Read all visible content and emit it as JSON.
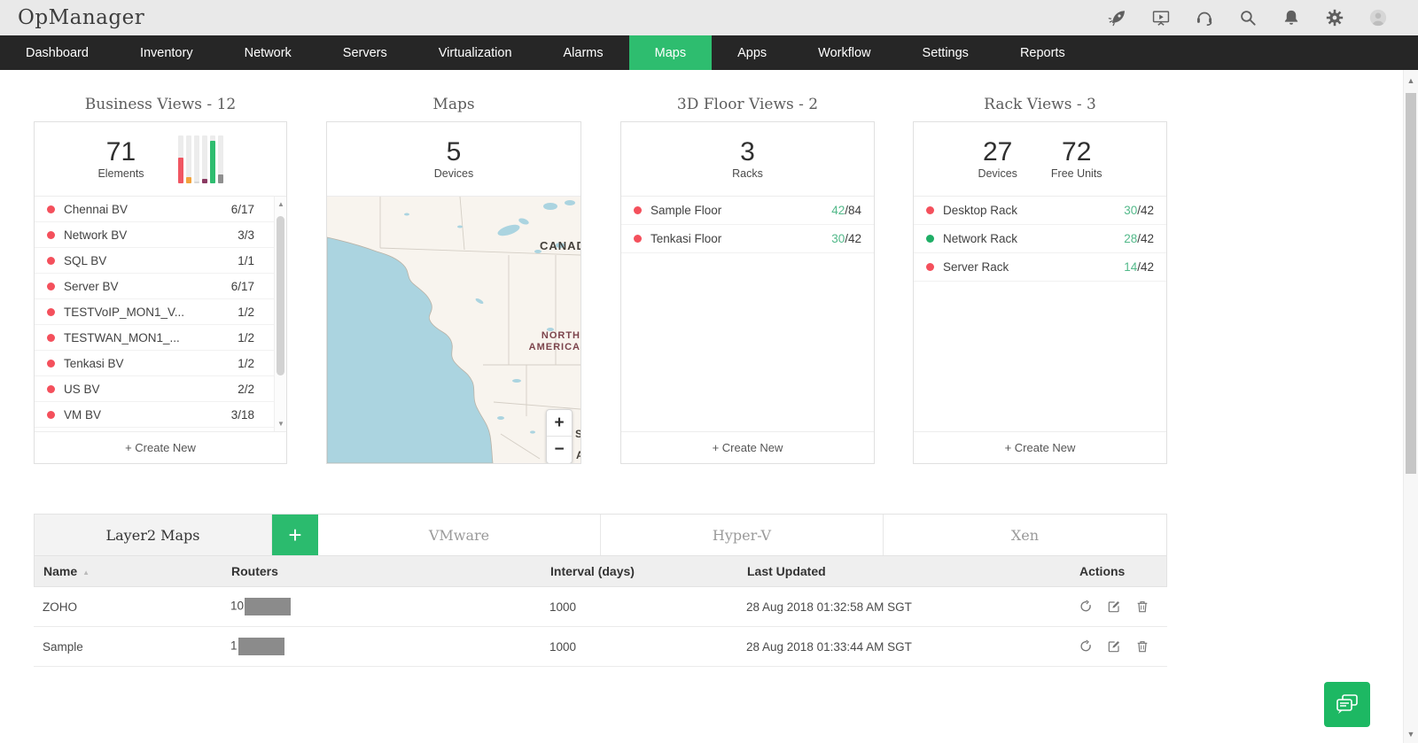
{
  "app": {
    "title": "OpManager"
  },
  "topbar": {
    "icons": [
      "rocket",
      "demo-video",
      "support-headset",
      "search",
      "notifications",
      "settings",
      "user-avatar"
    ]
  },
  "nav": {
    "items": [
      {
        "label": "Dashboard",
        "active": false
      },
      {
        "label": "Inventory",
        "active": false
      },
      {
        "label": "Network",
        "active": false
      },
      {
        "label": "Servers",
        "active": false
      },
      {
        "label": "Virtualization",
        "active": false
      },
      {
        "label": "Alarms",
        "active": false
      },
      {
        "label": "Maps",
        "active": true
      },
      {
        "label": "Apps",
        "active": false
      },
      {
        "label": "Workflow",
        "active": false
      },
      {
        "label": "Settings",
        "active": false
      },
      {
        "label": "Reports",
        "active": false
      }
    ]
  },
  "colors": {
    "accent_green": "#2ebd6f",
    "nav_bg": "#262626",
    "red_status": "#f4505c",
    "green_status": "#1fae66",
    "count_green": "#53b98a"
  },
  "cards": {
    "business_views": {
      "title": "Business Views - 12",
      "stat": {
        "value": "71",
        "label": "Elements"
      },
      "chart_bars": [
        {
          "height_pct": 52,
          "color": "#f05662"
        },
        {
          "height_pct": 12,
          "color": "#f2a33c"
        },
        {
          "height_pct": 3,
          "color": "#d8d8d8"
        },
        {
          "height_pct": 8,
          "color": "#8b3a62"
        },
        {
          "height_pct": 88,
          "color": "#2ebd6f"
        },
        {
          "height_pct": 18,
          "color": "#8f8f8f"
        }
      ],
      "items": [
        {
          "name": "Chennai BV",
          "count": "6/17",
          "status": "red"
        },
        {
          "name": "Network BV",
          "count": "3/3",
          "status": "red"
        },
        {
          "name": "SQL BV",
          "count": "1/1",
          "status": "red"
        },
        {
          "name": "Server BV",
          "count": "6/17",
          "status": "red"
        },
        {
          "name": "TESTVoIP_MON1_V...",
          "count": "1/2",
          "status": "red"
        },
        {
          "name": "TESTWAN_MON1_...",
          "count": "1/2",
          "status": "red"
        },
        {
          "name": "Tenkasi BV",
          "count": "1/2",
          "status": "red"
        },
        {
          "name": "US BV",
          "count": "2/2",
          "status": "red"
        },
        {
          "name": "VM BV",
          "count": "3/18",
          "status": "red"
        }
      ],
      "create_new": "+ Create New"
    },
    "maps": {
      "title": "Maps",
      "stat": {
        "value": "5",
        "label": "Devices"
      },
      "map": {
        "label_canada": "CANADA",
        "label_line1": "NORTH",
        "label_line2": "AMERICA",
        "clipped_1": "S",
        "clipped_2": "A",
        "zoom_in": "+",
        "zoom_out": "−"
      }
    },
    "floor_views": {
      "title": "3D Floor Views - 2",
      "stat": {
        "value": "3",
        "label": "Racks"
      },
      "items": [
        {
          "name": "Sample Floor",
          "count_used": "42",
          "count_rest": "/84",
          "status": "red"
        },
        {
          "name": "Tenkasi Floor",
          "count_used": "30",
          "count_rest": "/42",
          "status": "red"
        }
      ],
      "create_new": "+ Create New"
    },
    "rack_views": {
      "title": "Rack Views - 3",
      "stat1": {
        "value": "27",
        "label": "Devices"
      },
      "stat2": {
        "value": "72",
        "label": "Free Units"
      },
      "items": [
        {
          "name": "Desktop Rack",
          "count_used": "30",
          "count_rest": "/42",
          "status": "red"
        },
        {
          "name": "Network Rack",
          "count_used": "28",
          "count_rest": "/42",
          "status": "green"
        },
        {
          "name": "Server Rack",
          "count_used": "14",
          "count_rest": "/42",
          "status": "red"
        }
      ],
      "create_new": "+ Create New"
    }
  },
  "bottom": {
    "tabs": [
      {
        "label": "Layer2 Maps",
        "active": true
      },
      {
        "label": "VMware",
        "active": false
      },
      {
        "label": "Hyper-V",
        "active": false
      },
      {
        "label": "Xen",
        "active": false
      }
    ],
    "add_tab_label": "+",
    "table": {
      "columns": [
        "Name",
        "Routers",
        "Interval (days)",
        "Last Updated",
        "Actions"
      ],
      "sort_icon": "▲",
      "rows": [
        {
          "name": "ZOHO",
          "routers_visible": "10",
          "interval": "1000",
          "last_updated": "28 Aug 2018 01:32:58 AM SGT"
        },
        {
          "name": "Sample",
          "routers_visible": "1",
          "interval": "1000",
          "last_updated": "28 Aug 2018 01:33:44 AM SGT"
        }
      ]
    }
  },
  "scrollbar": {
    "up": "▲",
    "down": "▼"
  }
}
